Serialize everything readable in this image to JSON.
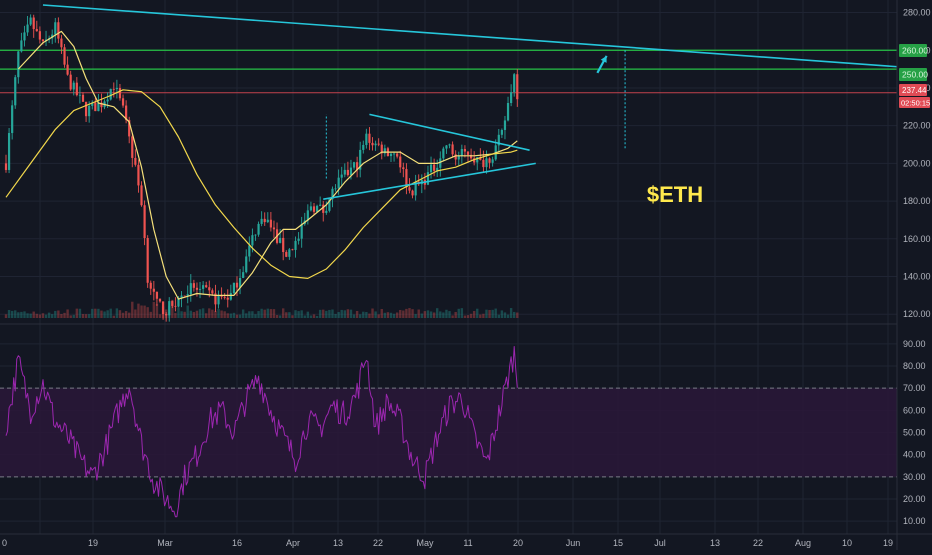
{
  "watermark": "$ETH",
  "price_badges": {
    "green_upper": "260.00",
    "green_lower": "250.00",
    "last_price": "237.44",
    "countdown": "02:50:15"
  },
  "colors": {
    "background": "#131722",
    "grid": "#1f2433",
    "candle_up": "#26a69a",
    "candle_down": "#ef5350",
    "ma_fast": "#f5e07a",
    "ma_slow": "#f2d84c",
    "trendline": "#26c6da",
    "level_green": "#26c246",
    "level_red": "#c2424c",
    "rsi_line": "#9c27b0",
    "rsi_band": "#2a1838",
    "watermark": "#ffe94d",
    "axis_text": "#b2b5be"
  },
  "chart_data": [
    {
      "type": "candlestick",
      "yaxis": {
        "ticks": [
          "280.00",
          "260.00",
          "240.00",
          "220.00",
          "200.00",
          "180.00",
          "160.00",
          "140.00",
          "120.00"
        ],
        "ylim": [
          118,
          284
        ]
      },
      "xaxis": {
        "ticks": [
          "0",
          "19",
          "Mar",
          "16",
          "Apr",
          "13",
          "22",
          "May",
          "11",
          "20",
          "Jun",
          "15",
          "Jul",
          "13",
          "22",
          "Aug",
          "10",
          "19"
        ]
      },
      "series": [
        {
          "role": "price",
          "keypoints": [
            {
              "d": 0,
              "v": 200
            },
            {
              "d": 4,
              "v": 258
            },
            {
              "d": 8,
              "v": 275
            },
            {
              "d": 12,
              "v": 262
            },
            {
              "d": 16,
              "v": 272
            },
            {
              "d": 20,
              "v": 245
            },
            {
              "d": 26,
              "v": 228
            },
            {
              "d": 31,
              "v": 232
            },
            {
              "d": 35,
              "v": 242
            },
            {
              "d": 38,
              "v": 228
            },
            {
              "d": 41,
              "v": 205
            },
            {
              "d": 44,
              "v": 180
            },
            {
              "d": 46,
              "v": 140
            },
            {
              "d": 49,
              "v": 125
            },
            {
              "d": 52,
              "v": 122
            },
            {
              "d": 56,
              "v": 128
            },
            {
              "d": 60,
              "v": 134
            },
            {
              "d": 64,
              "v": 132
            },
            {
              "d": 68,
              "v": 128
            },
            {
              "d": 73,
              "v": 130
            },
            {
              "d": 77,
              "v": 145
            },
            {
              "d": 81,
              "v": 165
            },
            {
              "d": 84,
              "v": 172
            },
            {
              "d": 88,
              "v": 160
            },
            {
              "d": 91,
              "v": 152
            },
            {
              "d": 95,
              "v": 160
            },
            {
              "d": 99,
              "v": 178
            },
            {
              "d": 103,
              "v": 175
            },
            {
              "d": 107,
              "v": 188
            },
            {
              "d": 111,
              "v": 195
            },
            {
              "d": 114,
              "v": 200
            },
            {
              "d": 117,
              "v": 214
            },
            {
              "d": 120,
              "v": 210
            },
            {
              "d": 123,
              "v": 207
            },
            {
              "d": 127,
              "v": 205
            },
            {
              "d": 131,
              "v": 185
            },
            {
              "d": 135,
              "v": 190
            },
            {
              "d": 139,
              "v": 198
            },
            {
              "d": 143,
              "v": 210
            },
            {
              "d": 146,
              "v": 203
            },
            {
              "d": 150,
              "v": 206
            },
            {
              "d": 154,
              "v": 200
            },
            {
              "d": 158,
              "v": 205
            },
            {
              "d": 161,
              "v": 215
            },
            {
              "d": 164,
              "v": 240
            },
            {
              "d": 165,
              "v": 247
            },
            {
              "d": 166,
              "v": 237.44
            }
          ]
        },
        {
          "role": "ma_fast",
          "points": [
            {
              "d": 4,
              "v": 250
            },
            {
              "d": 12,
              "v": 264
            },
            {
              "d": 18,
              "v": 270
            },
            {
              "d": 22,
              "v": 262
            },
            {
              "d": 26,
              "v": 245
            },
            {
              "d": 30,
              "v": 232
            },
            {
              "d": 35,
              "v": 230
            },
            {
              "d": 40,
              "v": 222
            },
            {
              "d": 44,
              "v": 198
            },
            {
              "d": 48,
              "v": 165
            },
            {
              "d": 52,
              "v": 140
            },
            {
              "d": 56,
              "v": 128
            },
            {
              "d": 62,
              "v": 131
            },
            {
              "d": 68,
              "v": 130
            },
            {
              "d": 74,
              "v": 130
            },
            {
              "d": 80,
              "v": 142
            },
            {
              "d": 86,
              "v": 158
            },
            {
              "d": 90,
              "v": 165
            },
            {
              "d": 94,
              "v": 165
            },
            {
              "d": 98,
              "v": 170
            },
            {
              "d": 104,
              "v": 178
            },
            {
              "d": 110,
              "v": 190
            },
            {
              "d": 116,
              "v": 200
            },
            {
              "d": 122,
              "v": 206
            },
            {
              "d": 128,
              "v": 206
            },
            {
              "d": 134,
              "v": 200
            },
            {
              "d": 140,
              "v": 200
            },
            {
              "d": 146,
              "v": 204
            },
            {
              "d": 152,
              "v": 204
            },
            {
              "d": 158,
              "v": 205
            },
            {
              "d": 163,
              "v": 208
            },
            {
              "d": 166,
              "v": 212
            }
          ]
        },
        {
          "role": "ma_slow",
          "points": [
            {
              "d": 0,
              "v": 182
            },
            {
              "d": 8,
              "v": 200
            },
            {
              "d": 16,
              "v": 218
            },
            {
              "d": 22,
              "v": 228
            },
            {
              "d": 28,
              "v": 232
            },
            {
              "d": 34,
              "v": 236
            },
            {
              "d": 38,
              "v": 239
            },
            {
              "d": 44,
              "v": 238
            },
            {
              "d": 50,
              "v": 230
            },
            {
              "d": 56,
              "v": 214
            },
            {
              "d": 62,
              "v": 194
            },
            {
              "d": 68,
              "v": 178
            },
            {
              "d": 74,
              "v": 166
            },
            {
              "d": 80,
              "v": 155
            },
            {
              "d": 86,
              "v": 146
            },
            {
              "d": 92,
              "v": 140
            },
            {
              "d": 98,
              "v": 139
            },
            {
              "d": 104,
              "v": 144
            },
            {
              "d": 110,
              "v": 154
            },
            {
              "d": 116,
              "v": 166
            },
            {
              "d": 122,
              "v": 176
            },
            {
              "d": 128,
              "v": 186
            },
            {
              "d": 134,
              "v": 191
            },
            {
              "d": 140,
              "v": 196
            },
            {
              "d": 146,
              "v": 198
            },
            {
              "d": 152,
              "v": 202
            },
            {
              "d": 158,
              "v": 205
            },
            {
              "d": 164,
              "v": 206
            },
            {
              "d": 166,
              "v": 207
            }
          ]
        }
      ],
      "levels": [
        {
          "v": 260,
          "kind": "green"
        },
        {
          "v": 250,
          "kind": "green"
        },
        {
          "v": 237.44,
          "kind": "red"
        }
      ],
      "trendlines": [
        {
          "from": {
            "d": 12,
            "v": 284
          },
          "to": {
            "d": 334,
            "v": 246
          }
        },
        {
          "from": {
            "d": 118,
            "v": 226
          },
          "to": {
            "d": 170,
            "v": 207
          }
        },
        {
          "from": {
            "d": 103,
            "v": 181
          },
          "to": {
            "d": 172,
            "v": 200
          }
        }
      ],
      "dotted_vlines": [
        {
          "d": 104,
          "from": 192,
          "to": 226
        },
        {
          "d": 201,
          "from": 208,
          "to": 260
        }
      ],
      "arrow": {
        "from": {
          "d": 192,
          "v": 248
        },
        "to": {
          "d": 195,
          "v": 257
        }
      }
    },
    {
      "type": "line",
      "yaxis": {
        "ticks": [
          "90.00",
          "80.00",
          "70.00",
          "60.00",
          "50.00",
          "40.00",
          "30.00",
          "20.00",
          "10.00"
        ],
        "ylim": [
          6,
          94
        ]
      },
      "band": [
        30,
        70
      ],
      "series": [
        {
          "role": "rsi",
          "keypoints": [
            {
              "d": 0,
              "v": 52
            },
            {
              "d": 4,
              "v": 82
            },
            {
              "d": 8,
              "v": 60
            },
            {
              "d": 12,
              "v": 72
            },
            {
              "d": 16,
              "v": 55
            },
            {
              "d": 20,
              "v": 48
            },
            {
              "d": 24,
              "v": 38
            },
            {
              "d": 28,
              "v": 30
            },
            {
              "d": 32,
              "v": 42
            },
            {
              "d": 36,
              "v": 58
            },
            {
              "d": 40,
              "v": 72
            },
            {
              "d": 44,
              "v": 45
            },
            {
              "d": 48,
              "v": 28
            },
            {
              "d": 52,
              "v": 20
            },
            {
              "d": 55,
              "v": 15
            },
            {
              "d": 58,
              "v": 30
            },
            {
              "d": 62,
              "v": 40
            },
            {
              "d": 66,
              "v": 55
            },
            {
              "d": 70,
              "v": 60
            },
            {
              "d": 74,
              "v": 50
            },
            {
              "d": 78,
              "v": 65
            },
            {
              "d": 82,
              "v": 75
            },
            {
              "d": 86,
              "v": 60
            },
            {
              "d": 90,
              "v": 48
            },
            {
              "d": 94,
              "v": 38
            },
            {
              "d": 98,
              "v": 55
            },
            {
              "d": 102,
              "v": 52
            },
            {
              "d": 106,
              "v": 62
            },
            {
              "d": 110,
              "v": 58
            },
            {
              "d": 114,
              "v": 68
            },
            {
              "d": 117,
              "v": 86
            },
            {
              "d": 120,
              "v": 52
            },
            {
              "d": 124,
              "v": 64
            },
            {
              "d": 128,
              "v": 55
            },
            {
              "d": 132,
              "v": 38
            },
            {
              "d": 136,
              "v": 30
            },
            {
              "d": 140,
              "v": 48
            },
            {
              "d": 144,
              "v": 62
            },
            {
              "d": 148,
              "v": 66
            },
            {
              "d": 152,
              "v": 48
            },
            {
              "d": 156,
              "v": 36
            },
            {
              "d": 160,
              "v": 58
            },
            {
              "d": 163,
              "v": 75
            },
            {
              "d": 165,
              "v": 86
            },
            {
              "d": 166,
              "v": 74
            }
          ]
        }
      ]
    }
  ]
}
